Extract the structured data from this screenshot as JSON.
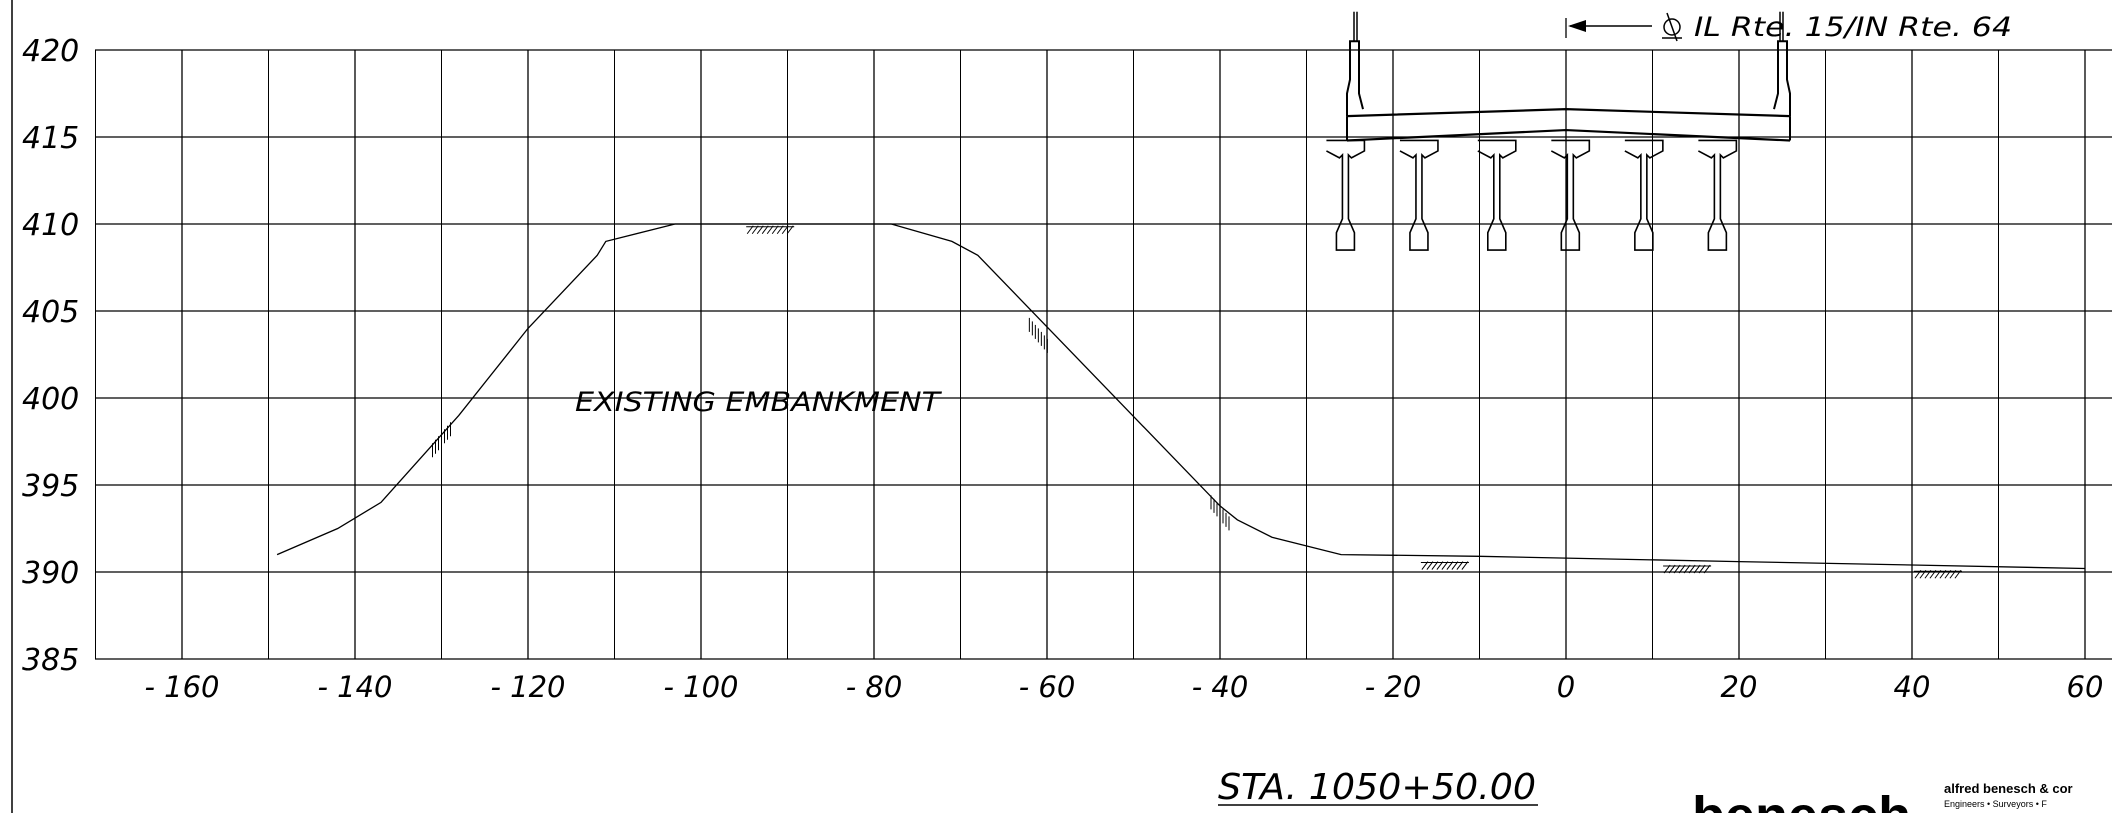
{
  "drawing": {
    "label": "EXISTING EMBANKMENT",
    "station": "STA. 1050+50.00",
    "centerline_label": "IL Rte. 15/IN Rte. 64",
    "centerline_symbol": "centerline-icon"
  },
  "axes": {
    "x_ticks": [
      "-160",
      "-140",
      "-120",
      "-100",
      "-80",
      "-60",
      "-40",
      "-20",
      "0",
      "20",
      "40",
      "60"
    ],
    "y_ticks": [
      "420",
      "415",
      "410",
      "405",
      "400",
      "395",
      "390",
      "385"
    ],
    "x_range": [
      -170,
      60
    ],
    "y_range": [
      385,
      420
    ],
    "grid": true
  },
  "ground_profile": {
    "offsets": [
      -149,
      -142,
      -137,
      -128,
      -120,
      -112,
      -111,
      -103,
      -78,
      -71,
      -68,
      -40,
      -38,
      -34,
      -26,
      -10,
      0,
      20,
      40,
      60
    ],
    "elevations": [
      391,
      392.5,
      394,
      399,
      404,
      408.2,
      409,
      410,
      410,
      409,
      408.2,
      393.8,
      393,
      392,
      391,
      390.9,
      390.8,
      390.6,
      390.4,
      390.2
    ]
  },
  "bridge": {
    "girder_offsets": [
      -25.5,
      -17,
      -8,
      0.5,
      9,
      17.5
    ]
  },
  "logo": {
    "company": "alfred benesch & cor",
    "tagline": "Engineers  •  Surveyors  •  F",
    "wordmark": "benesch"
  }
}
